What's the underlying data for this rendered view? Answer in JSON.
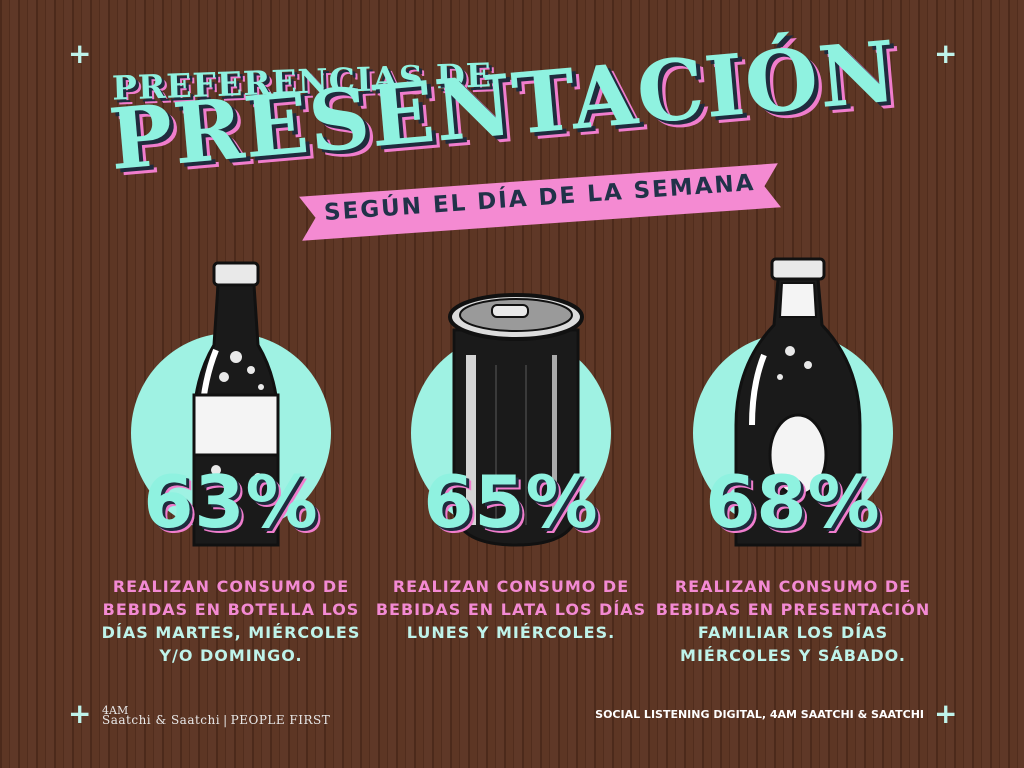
{
  "header": {
    "title_small": "PREFERENCIAS DE",
    "title_large": "PRESENTACIÓN",
    "ribbon": "SEGÚN EL DÍA DE LA SEMANA"
  },
  "stats": [
    {
      "percent": "63%",
      "icon": "glass-bottle-icon",
      "desc_pink_1": "Realizan consumo de",
      "desc_pink_2": "bebidas en botella los",
      "desc_mint": "días martes, miércoles",
      "desc_mint_2": "y/o domingo."
    },
    {
      "percent": "65%",
      "icon": "can-icon",
      "desc_pink_1": "Realizan consumo de",
      "desc_pink_2": "bebidas en lata los días",
      "desc_mint": "lunes y miércoles."
    },
    {
      "percent": "68%",
      "icon": "family-bottle-icon",
      "desc_pink_1": "Realizan consumo de",
      "desc_pink_2": "bebidas en presentación",
      "desc_mint": "familiar los días",
      "desc_mint_2": "miércoles y sábado."
    }
  ],
  "footer": {
    "logo_top": "4AM",
    "logo_agency": "Saatchi & Saatchi",
    "logo_separator": "|",
    "logo_tagline": "PEOPLE FIRST",
    "credit": "SOCIAL LISTENING DIGITAL, 4AM SAATCHI & SAATCHI"
  },
  "colors": {
    "background": "#5a3220",
    "mint": "#8ff2e0",
    "pink": "#f07dcd",
    "navy": "#1f2b3d"
  }
}
